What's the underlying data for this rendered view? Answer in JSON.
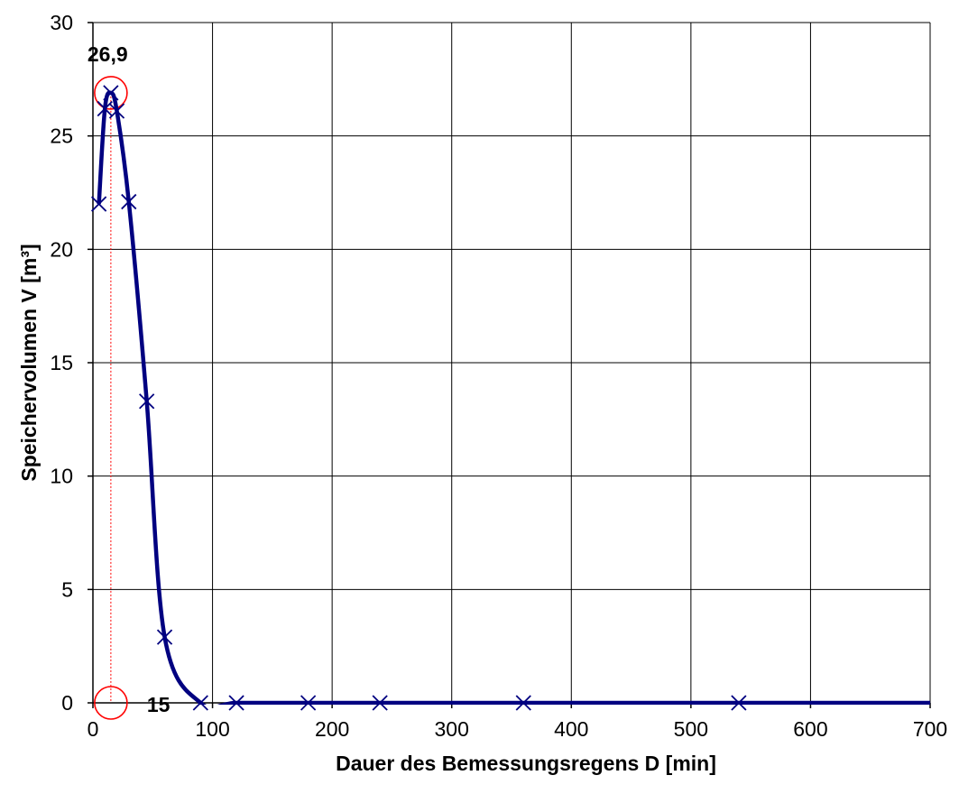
{
  "chart_data": {
    "type": "line",
    "title": "",
    "xlabel": "Dauer des Bemessungsregens  D [min]",
    "ylabel": "Speichervolumen V [m³]",
    "xlim": [
      0,
      700
    ],
    "ylim": [
      0,
      30
    ],
    "xticks": [
      "0",
      "100",
      "200",
      "300",
      "400",
      "500",
      "600",
      "700"
    ],
    "yticks": [
      "0",
      "5",
      "10",
      "15",
      "20",
      "25",
      "30"
    ],
    "grid": true,
    "series": [
      {
        "x": [
          5,
          10,
          15,
          20,
          30,
          45,
          60,
          90,
          120,
          180,
          240,
          360,
          540,
          720
        ],
        "y": [
          22.0,
          26.2,
          26.9,
          26.1,
          22.1,
          13.3,
          2.9,
          0,
          0,
          0,
          0,
          0,
          0,
          0
        ],
        "color": "#000080",
        "marker": "x"
      }
    ],
    "annotations": [
      {
        "text": "26,9",
        "x": 15,
        "y": 26.9,
        "role": "maximum volume"
      },
      {
        "text": "15",
        "x": 15,
        "y": 0,
        "role": "critical duration"
      }
    ],
    "highlight_color": "#ff0000"
  }
}
